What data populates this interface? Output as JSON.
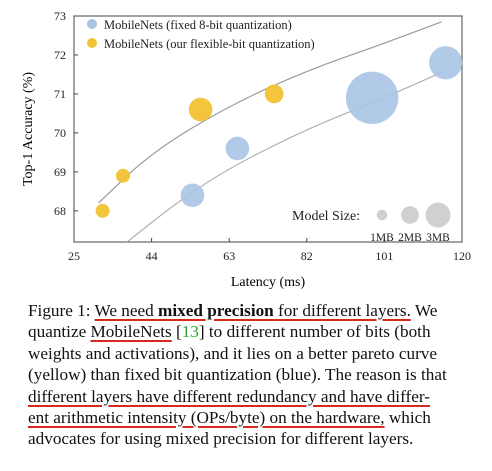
{
  "chart_data": {
    "type": "scatter",
    "xlabel": "Latency (ms)",
    "ylabel": "Top-1 Accuracy (%)",
    "xlim": [
      25,
      120
    ],
    "ylim": [
      67.2,
      73
    ],
    "xticks": [
      25,
      44,
      63,
      82,
      101,
      120
    ],
    "yticks": [
      68,
      69,
      70,
      71,
      72,
      73
    ],
    "grid": false,
    "legend_position": "top-left",
    "series": [
      {
        "name": "MobileNets (fixed 8-bit quantization)",
        "color": "#a9c4e4",
        "points": [
          {
            "x": 54,
            "y": 68.4,
            "size": 2
          },
          {
            "x": 65,
            "y": 69.6,
            "size": 2
          },
          {
            "x": 98,
            "y": 70.9,
            "size": 5
          },
          {
            "x": 116,
            "y": 71.8,
            "size": 3
          }
        ]
      },
      {
        "name": "MobileNets (our flexible-bit quantization)",
        "color": "#f2c232",
        "points": [
          {
            "x": 32,
            "y": 68.0,
            "size": 1
          },
          {
            "x": 37,
            "y": 68.9,
            "size": 1
          },
          {
            "x": 56,
            "y": 70.6,
            "size": 2
          },
          {
            "x": 74,
            "y": 71.0,
            "size": 1.5
          }
        ]
      }
    ],
    "trend_curves": [
      {
        "color": "#9a9a9a",
        "points": [
          [
            31,
            68.2
          ],
          [
            44,
            69.5
          ],
          [
            63,
            70.7
          ],
          [
            82,
            71.6
          ],
          [
            101,
            72.3
          ],
          [
            115,
            72.85
          ]
        ]
      },
      {
        "color": "#b0b0b0",
        "points": [
          [
            38,
            67.2
          ],
          [
            50,
            68.2
          ],
          [
            63,
            69.1
          ],
          [
            82,
            70.1
          ],
          [
            101,
            70.9
          ],
          [
            116,
            71.6
          ]
        ]
      }
    ],
    "size_legend": {
      "title": "Model Size:",
      "items": [
        {
          "label": "1MB",
          "size": 1
        },
        {
          "label": "2MB",
          "size": 2
        },
        {
          "label": "3MB",
          "size": 3
        }
      ],
      "color": "#d0d0d0"
    }
  },
  "caption": {
    "line1_a": "Figure 1: ",
    "line1_b": "We need ",
    "line1_c": "mixed precision",
    "line1_d": " for different layers.",
    "line1_e": " We",
    "line2_a": "quantize ",
    "line2_b": "MobileNets",
    "line2_c": " [",
    "line2_ref": "13",
    "line2_d": "] to different number of bits (both",
    "line3": "weights and activations), and it lies on a better pareto curve",
    "line4": "(yellow) than fixed bit quantization (blue). The reason is that",
    "line5": "different layers have different redundancy and have differ-",
    "line6_a": "ent arithmetic intensity (OPs/byte) on the hardware,",
    "line6_b": " which",
    "line7": "advocates for using mixed precision for different layers."
  }
}
